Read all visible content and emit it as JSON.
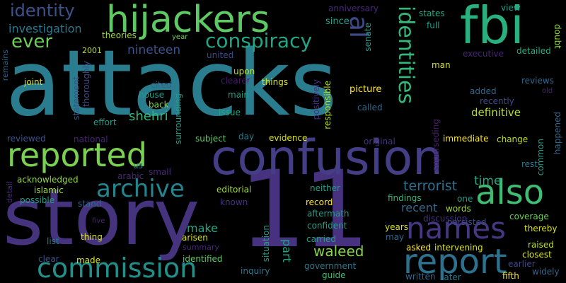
{
  "word_cloud": {
    "background": "#000000",
    "words": [
      {
        "text": "attacks",
        "color": "#2a7d8e"
      },
      {
        "text": "story",
        "color": "#46337e"
      },
      {
        "text": "11",
        "color": "#46327e"
      },
      {
        "text": "confusion",
        "color": "#433e85"
      },
      {
        "text": "fbi",
        "color": "#2ab07f"
      },
      {
        "text": "hijackers",
        "color": "#5ec962"
      },
      {
        "text": "reported",
        "color": "#7ad151"
      },
      {
        "text": "report",
        "color": "#2c728e"
      },
      {
        "text": "names",
        "color": "#453781"
      },
      {
        "text": "also",
        "color": "#3fbc73"
      },
      {
        "text": "commission",
        "color": "#21918c"
      },
      {
        "text": "archive",
        "color": "#25858e"
      },
      {
        "text": "identities",
        "color": "#35b779"
      },
      {
        "text": "conspiracy",
        "color": "#21a685"
      },
      {
        "text": "identity",
        "color": "#3b528b"
      },
      {
        "text": "ever",
        "color": "#6ece58"
      },
      {
        "text": "al",
        "color": "#3e4989"
      },
      {
        "text": "investigation",
        "color": "#2a788e"
      },
      {
        "text": "nineteen",
        "color": "#3b528b"
      },
      {
        "text": "time",
        "color": "#22a884"
      },
      {
        "text": "waleed",
        "color": "#86d549"
      },
      {
        "text": "terrorist",
        "color": "#2c728e"
      },
      {
        "text": "recent",
        "color": "#31688e"
      },
      {
        "text": "make",
        "color": "#22a884"
      },
      {
        "text": "shehri",
        "color": "#35b779"
      },
      {
        "text": "part",
        "color": "#21a685"
      },
      {
        "text": "definitive",
        "color": "#b5de2b"
      },
      {
        "text": "anniversary",
        "color": "#482878"
      },
      {
        "text": "since",
        "color": "#1fa088"
      },
      {
        "text": "senate",
        "color": "#1f9e89"
      },
      {
        "text": "states",
        "color": "#22a884"
      },
      {
        "text": "full",
        "color": "#1fa088"
      },
      {
        "text": "view",
        "color": "#1f9e89"
      },
      {
        "text": "doubt",
        "color": "#90d743"
      },
      {
        "text": "detailed",
        "color": "#25ab82"
      },
      {
        "text": "theories",
        "color": "#a0da39"
      },
      {
        "text": "year",
        "color": "#6ece58"
      },
      {
        "text": "2001",
        "color": "#b5de2b"
      },
      {
        "text": "united",
        "color": "#3e4989"
      },
      {
        "text": "executive",
        "color": "#482475"
      },
      {
        "text": "man",
        "color": "#d8e219"
      },
      {
        "text": "remains",
        "color": "#33638d"
      },
      {
        "text": "statement",
        "color": "#3b528b"
      },
      {
        "text": "thoroughly",
        "color": "#3e4989"
      },
      {
        "text": "joint",
        "color": "#d8e219"
      },
      {
        "text": "cited",
        "color": "#33638d"
      },
      {
        "text": "upon",
        "color": "#bddf26"
      },
      {
        "text": "clearer",
        "color": "#481a6c"
      },
      {
        "text": "main",
        "color": "#1fa088"
      },
      {
        "text": "things",
        "color": "#d8e219"
      },
      {
        "text": "positively",
        "color": "#46327e"
      },
      {
        "text": "responsible",
        "color": "#b5de2b"
      },
      {
        "text": "picture",
        "color": "#fde725"
      },
      {
        "text": "added",
        "color": "#31688e"
      },
      {
        "text": "reviews",
        "color": "#31688e"
      },
      {
        "text": "old",
        "color": "#482475"
      },
      {
        "text": "house",
        "color": "#1f9e89"
      },
      {
        "text": "back",
        "color": "#86d549"
      },
      {
        "text": "effort",
        "color": "#1fa088"
      },
      {
        "text": "surrounding",
        "color": "#1f9e89"
      },
      {
        "text": "issue",
        "color": "#22a884"
      },
      {
        "text": "called",
        "color": "#31688e"
      },
      {
        "text": "recently",
        "color": "#3e4989"
      },
      {
        "text": "superseding",
        "color": "#481f70"
      },
      {
        "text": "happened",
        "color": "#31688e"
      },
      {
        "text": "reviewed",
        "color": "#3b528b"
      },
      {
        "text": "national",
        "color": "#482475"
      },
      {
        "text": "subject",
        "color": "#5ec962"
      },
      {
        "text": "day",
        "color": "#2a788e"
      },
      {
        "text": "evidence",
        "color": "#d8e219"
      },
      {
        "text": "immediate",
        "color": "#fde725"
      },
      {
        "text": "change",
        "color": "#bddf26"
      },
      {
        "text": "common",
        "color": "#1f9e89"
      },
      {
        "text": "us",
        "color": "#2a788e"
      },
      {
        "text": "arabic",
        "color": "#482878"
      },
      {
        "text": "small",
        "color": "#482878"
      },
      {
        "text": "original",
        "color": "#46327e"
      },
      {
        "text": "acknowledged",
        "color": "#90d743"
      },
      {
        "text": "rest",
        "color": "#2a788e"
      },
      {
        "text": "detail",
        "color": "#482878"
      },
      {
        "text": "islamic",
        "color": "#a0da39"
      },
      {
        "text": "editorial",
        "color": "#a0da39"
      },
      {
        "text": "neither",
        "color": "#1f9e89"
      },
      {
        "text": "possible",
        "color": "#1fa088"
      },
      {
        "text": "stand",
        "color": "#31688e"
      },
      {
        "text": "known",
        "color": "#46327e"
      },
      {
        "text": "record",
        "color": "#fde725"
      },
      {
        "text": "findings",
        "color": "#35b779"
      },
      {
        "text": "words",
        "color": "#a0da39"
      },
      {
        "text": "one",
        "color": "#1f9e89"
      },
      {
        "text": "aftermath",
        "color": "#1fa088"
      },
      {
        "text": "persisted",
        "color": "#3e4989"
      },
      {
        "text": "coverage",
        "color": "#6ece58"
      },
      {
        "text": "five",
        "color": "#482475"
      },
      {
        "text": "confident",
        "color": "#1fa088"
      },
      {
        "text": "thereby",
        "color": "#d8e219"
      },
      {
        "text": "discussion",
        "color": "#46327e"
      },
      {
        "text": "list",
        "color": "#2a788e"
      },
      {
        "text": "thing",
        "color": "#d8e219"
      },
      {
        "text": "arisen",
        "color": "#d8e219"
      },
      {
        "text": "summary",
        "color": "#482878"
      },
      {
        "text": "carried",
        "color": "#1fa088"
      },
      {
        "text": "years",
        "color": "#d8e219"
      },
      {
        "text": "may",
        "color": "#31688e"
      },
      {
        "text": "raised",
        "color": "#bddf26"
      },
      {
        "text": "closest",
        "color": "#d8e219"
      },
      {
        "text": "clear",
        "color": "#3b528b"
      },
      {
        "text": "situation",
        "color": "#1fa088"
      },
      {
        "text": "asked",
        "color": "#fde725"
      },
      {
        "text": "intervening",
        "color": "#d8e219"
      },
      {
        "text": "made",
        "color": "#d8e219"
      },
      {
        "text": "identified",
        "color": "#5ec962"
      },
      {
        "text": "government",
        "color": "#2a788e"
      },
      {
        "text": "earlier",
        "color": "#3e4989"
      },
      {
        "text": "inquiry",
        "color": "#2a788e"
      },
      {
        "text": "guide",
        "color": "#3fbc73"
      },
      {
        "text": "widely",
        "color": "#33638d"
      },
      {
        "text": "written",
        "color": "#31688e"
      },
      {
        "text": "later",
        "color": "#2a788e"
      },
      {
        "text": "fifth",
        "color": "#fde725"
      }
    ]
  }
}
